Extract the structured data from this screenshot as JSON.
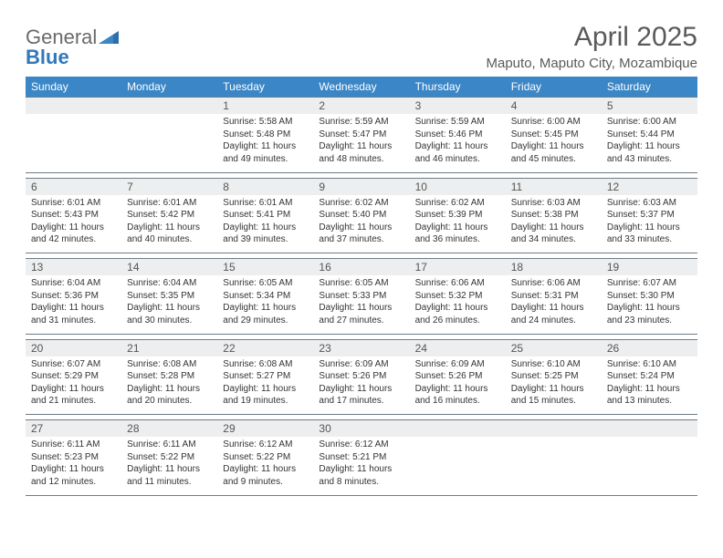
{
  "logo": {
    "word1": "General",
    "word2": "Blue"
  },
  "title": "April 2025",
  "location": "Maputo, Maputo City, Mozambique",
  "colors": {
    "header_bg": "#3b86c6",
    "header_text": "#ffffff",
    "daynum_bg": "#eceeef",
    "border": "#6f7b85",
    "text": "#333333",
    "logo_gray": "#6a6a6a",
    "logo_blue": "#3178b8"
  },
  "day_headers": [
    "Sunday",
    "Monday",
    "Tuesday",
    "Wednesday",
    "Thursday",
    "Friday",
    "Saturday"
  ],
  "weeks": [
    {
      "days": [
        null,
        null,
        {
          "n": "1",
          "sunrise": "5:58 AM",
          "sunset": "5:48 PM",
          "daylight": "11 hours and 49 minutes."
        },
        {
          "n": "2",
          "sunrise": "5:59 AM",
          "sunset": "5:47 PM",
          "daylight": "11 hours and 48 minutes."
        },
        {
          "n": "3",
          "sunrise": "5:59 AM",
          "sunset": "5:46 PM",
          "daylight": "11 hours and 46 minutes."
        },
        {
          "n": "4",
          "sunrise": "6:00 AM",
          "sunset": "5:45 PM",
          "daylight": "11 hours and 45 minutes."
        },
        {
          "n": "5",
          "sunrise": "6:00 AM",
          "sunset": "5:44 PM",
          "daylight": "11 hours and 43 minutes."
        }
      ]
    },
    {
      "days": [
        {
          "n": "6",
          "sunrise": "6:01 AM",
          "sunset": "5:43 PM",
          "daylight": "11 hours and 42 minutes."
        },
        {
          "n": "7",
          "sunrise": "6:01 AM",
          "sunset": "5:42 PM",
          "daylight": "11 hours and 40 minutes."
        },
        {
          "n": "8",
          "sunrise": "6:01 AM",
          "sunset": "5:41 PM",
          "daylight": "11 hours and 39 minutes."
        },
        {
          "n": "9",
          "sunrise": "6:02 AM",
          "sunset": "5:40 PM",
          "daylight": "11 hours and 37 minutes."
        },
        {
          "n": "10",
          "sunrise": "6:02 AM",
          "sunset": "5:39 PM",
          "daylight": "11 hours and 36 minutes."
        },
        {
          "n": "11",
          "sunrise": "6:03 AM",
          "sunset": "5:38 PM",
          "daylight": "11 hours and 34 minutes."
        },
        {
          "n": "12",
          "sunrise": "6:03 AM",
          "sunset": "5:37 PM",
          "daylight": "11 hours and 33 minutes."
        }
      ]
    },
    {
      "days": [
        {
          "n": "13",
          "sunrise": "6:04 AM",
          "sunset": "5:36 PM",
          "daylight": "11 hours and 31 minutes."
        },
        {
          "n": "14",
          "sunrise": "6:04 AM",
          "sunset": "5:35 PM",
          "daylight": "11 hours and 30 minutes."
        },
        {
          "n": "15",
          "sunrise": "6:05 AM",
          "sunset": "5:34 PM",
          "daylight": "11 hours and 29 minutes."
        },
        {
          "n": "16",
          "sunrise": "6:05 AM",
          "sunset": "5:33 PM",
          "daylight": "11 hours and 27 minutes."
        },
        {
          "n": "17",
          "sunrise": "6:06 AM",
          "sunset": "5:32 PM",
          "daylight": "11 hours and 26 minutes."
        },
        {
          "n": "18",
          "sunrise": "6:06 AM",
          "sunset": "5:31 PM",
          "daylight": "11 hours and 24 minutes."
        },
        {
          "n": "19",
          "sunrise": "6:07 AM",
          "sunset": "5:30 PM",
          "daylight": "11 hours and 23 minutes."
        }
      ]
    },
    {
      "days": [
        {
          "n": "20",
          "sunrise": "6:07 AM",
          "sunset": "5:29 PM",
          "daylight": "11 hours and 21 minutes."
        },
        {
          "n": "21",
          "sunrise": "6:08 AM",
          "sunset": "5:28 PM",
          "daylight": "11 hours and 20 minutes."
        },
        {
          "n": "22",
          "sunrise": "6:08 AM",
          "sunset": "5:27 PM",
          "daylight": "11 hours and 19 minutes."
        },
        {
          "n": "23",
          "sunrise": "6:09 AM",
          "sunset": "5:26 PM",
          "daylight": "11 hours and 17 minutes."
        },
        {
          "n": "24",
          "sunrise": "6:09 AM",
          "sunset": "5:26 PM",
          "daylight": "11 hours and 16 minutes."
        },
        {
          "n": "25",
          "sunrise": "6:10 AM",
          "sunset": "5:25 PM",
          "daylight": "11 hours and 15 minutes."
        },
        {
          "n": "26",
          "sunrise": "6:10 AM",
          "sunset": "5:24 PM",
          "daylight": "11 hours and 13 minutes."
        }
      ]
    },
    {
      "days": [
        {
          "n": "27",
          "sunrise": "6:11 AM",
          "sunset": "5:23 PM",
          "daylight": "11 hours and 12 minutes."
        },
        {
          "n": "28",
          "sunrise": "6:11 AM",
          "sunset": "5:22 PM",
          "daylight": "11 hours and 11 minutes."
        },
        {
          "n": "29",
          "sunrise": "6:12 AM",
          "sunset": "5:22 PM",
          "daylight": "11 hours and 9 minutes."
        },
        {
          "n": "30",
          "sunrise": "6:12 AM",
          "sunset": "5:21 PM",
          "daylight": "11 hours and 8 minutes."
        },
        null,
        null,
        null
      ]
    }
  ],
  "labels": {
    "sunrise_prefix": "Sunrise: ",
    "sunset_prefix": "Sunset: ",
    "daylight_prefix": "Daylight: "
  }
}
